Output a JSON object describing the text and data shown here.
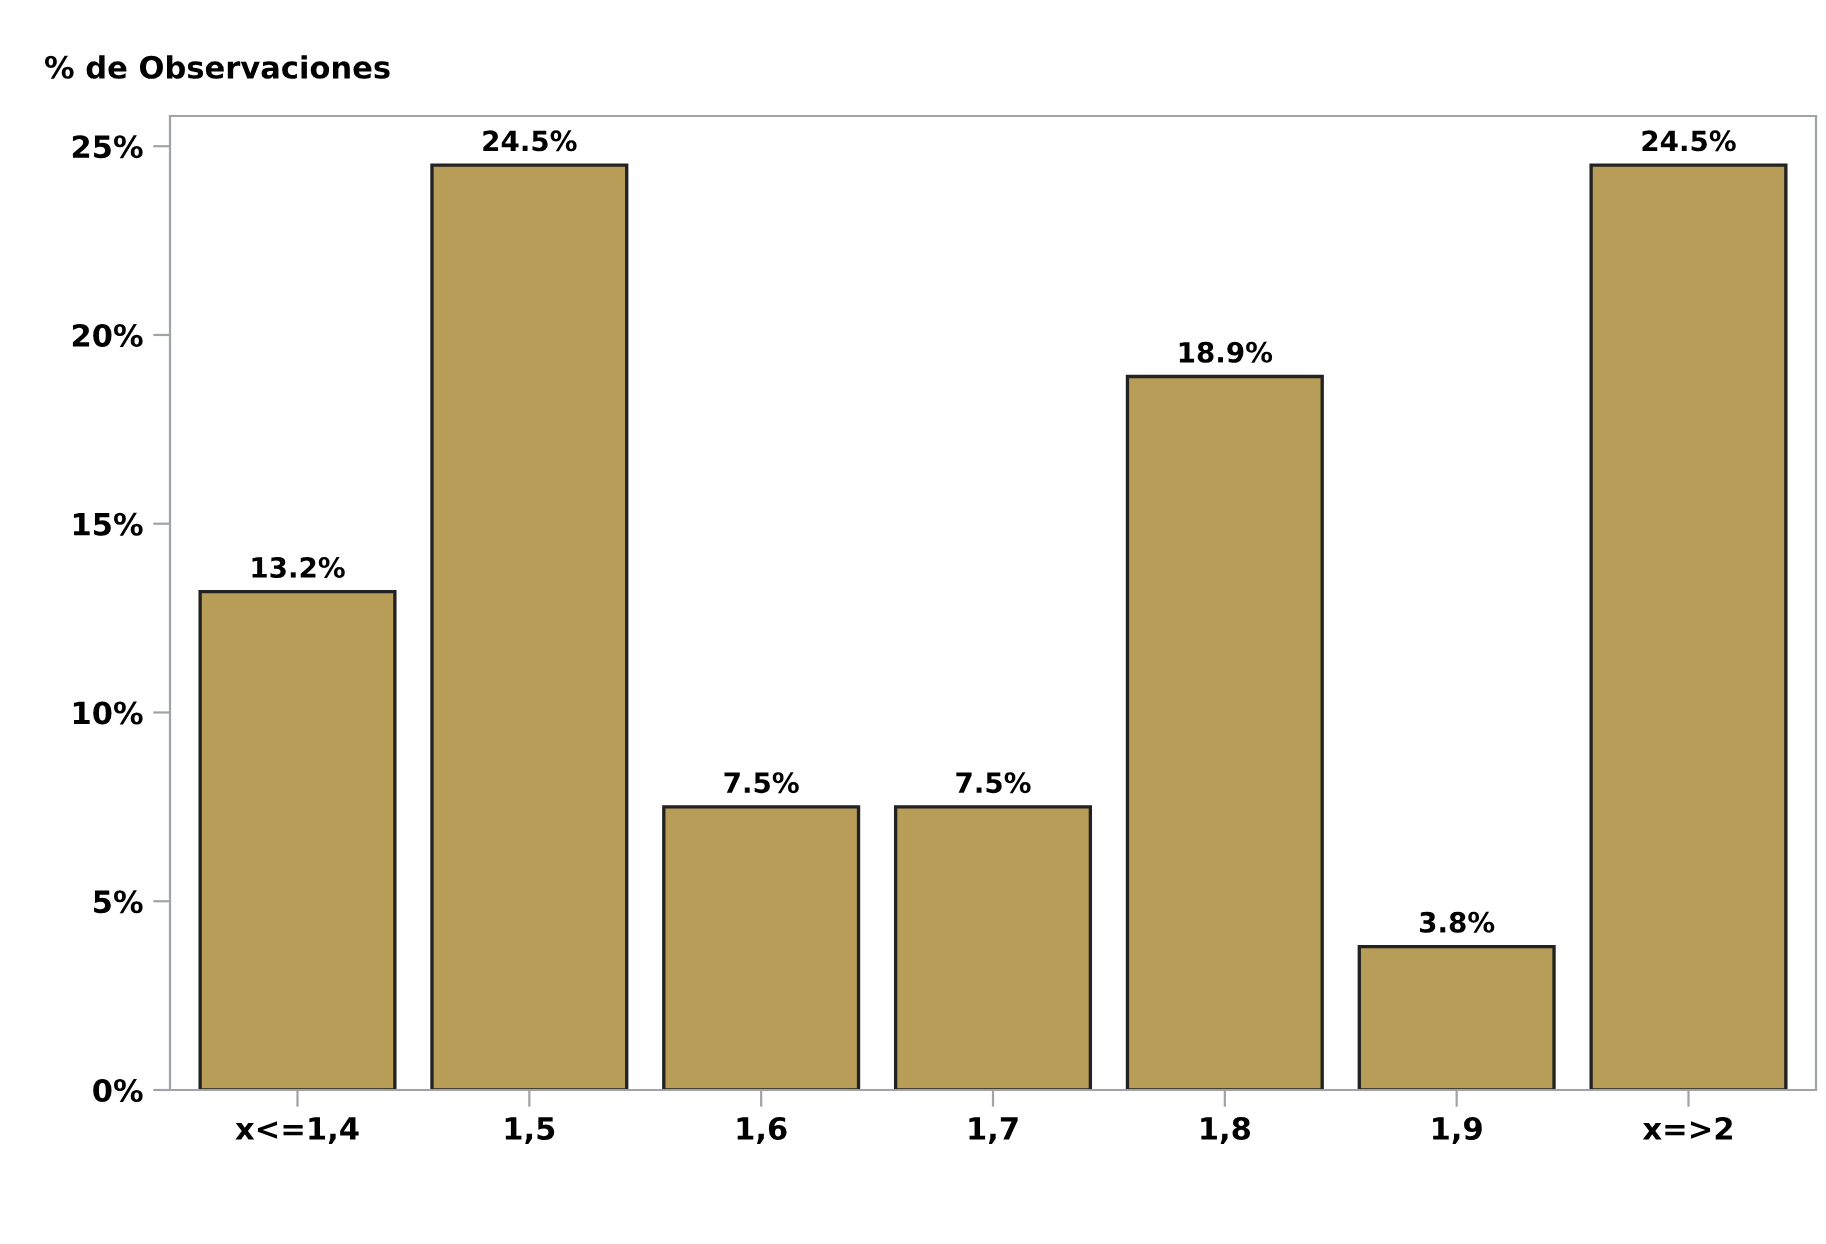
{
  "chart_data": {
    "type": "bar",
    "ylabel": "% de Observaciones",
    "categories": [
      "x<=1,4",
      "1,5",
      "1,6",
      "1,7",
      "1,8",
      "1,9",
      "x=>2"
    ],
    "values": [
      13.2,
      24.5,
      7.5,
      7.5,
      18.9,
      3.8,
      24.5
    ],
    "value_labels": [
      "13.2%",
      "24.5%",
      "7.5%",
      "7.5%",
      "18.9%",
      "3.8%",
      "24.5%"
    ],
    "color": "#b89d58",
    "ylim": [
      0,
      25.8
    ],
    "yticks": [
      {
        "value": 0,
        "label": "0%"
      },
      {
        "value": 5,
        "label": "5%"
      },
      {
        "value": 10,
        "label": "10%"
      },
      {
        "value": 15,
        "label": "15%"
      },
      {
        "value": 20,
        "label": "20%"
      },
      {
        "value": 25,
        "label": "25%"
      }
    ],
    "grid": false,
    "legend": false
  }
}
